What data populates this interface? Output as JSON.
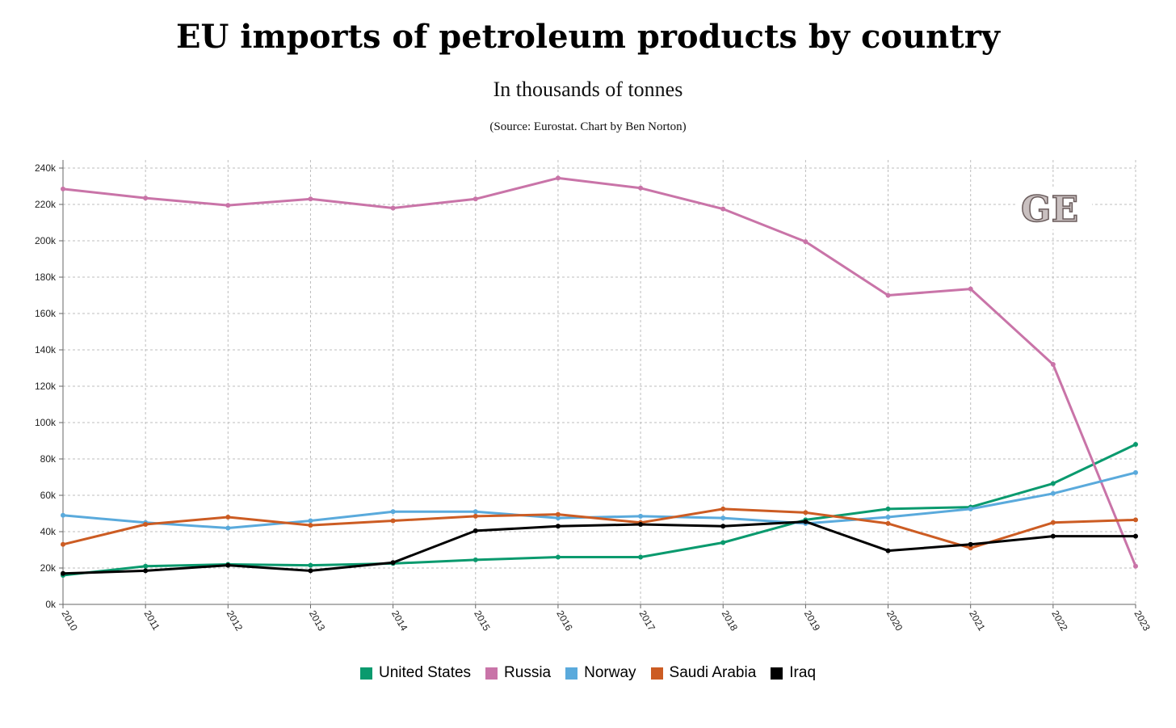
{
  "title": "EU imports of petroleum products by country",
  "subtitle": "In thousands of tonnes",
  "source": "(Source: Eurostat. Chart by Ben Norton)",
  "logo_text": "GE",
  "chart_data": {
    "type": "line",
    "title": "EU imports of petroleum products by country",
    "subtitle": "In thousands of tonnes",
    "x": [
      "2010",
      "2011",
      "2012",
      "2013",
      "2014",
      "2015",
      "2016",
      "2017",
      "2018",
      "2019",
      "2020",
      "2021",
      "2022",
      "2023"
    ],
    "ylim": [
      0,
      240000
    ],
    "y_ticks": [
      0,
      20000,
      40000,
      60000,
      80000,
      100000,
      120000,
      140000,
      160000,
      180000,
      200000,
      220000,
      240000
    ],
    "y_tick_labels": [
      "0k",
      "20k",
      "40k",
      "60k",
      "80k",
      "100k",
      "120k",
      "140k",
      "160k",
      "180k",
      "200k",
      "220k",
      "240k"
    ],
    "grid": true,
    "legend_position": "bottom",
    "series": [
      {
        "name": "United States",
        "color": "#0a9a6e",
        "values": [
          16000,
          21000,
          22000,
          21500,
          22500,
          24500,
          26000,
          26000,
          34000,
          46500,
          52500,
          53500,
          66500,
          88000
        ]
      },
      {
        "name": "Russia",
        "color": "#c974a8",
        "values": [
          228500,
          223500,
          219500,
          223000,
          218000,
          223000,
          234500,
          229000,
          217500,
          199500,
          170000,
          173500,
          132000,
          21000
        ]
      },
      {
        "name": "Norway",
        "color": "#5aaadc",
        "values": [
          49000,
          45000,
          42000,
          46000,
          51000,
          51000,
          47500,
          48500,
          47500,
          44500,
          48000,
          52500,
          61000,
          72500
        ]
      },
      {
        "name": "Saudi Arabia",
        "color": "#cc5c23",
        "values": [
          33000,
          44000,
          48000,
          43500,
          46000,
          48500,
          49500,
          45000,
          52500,
          50500,
          44500,
          31000,
          45000,
          46500
        ]
      },
      {
        "name": "Iraq",
        "color": "#000000",
        "values": [
          17000,
          18500,
          21500,
          18500,
          23000,
          40500,
          43000,
          44000,
          43000,
          45500,
          29500,
          33000,
          37500,
          37500
        ]
      }
    ]
  }
}
